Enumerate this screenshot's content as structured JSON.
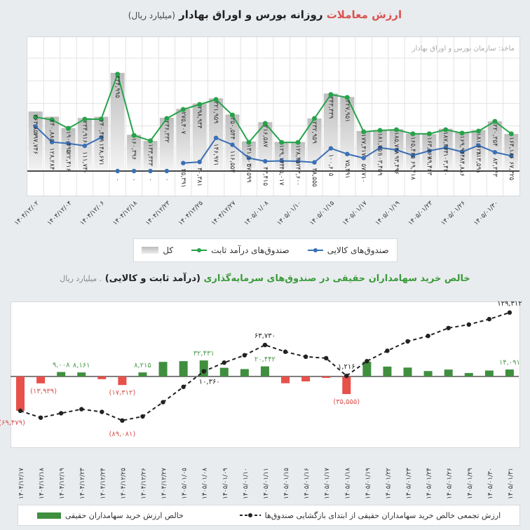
{
  "top_chart": {
    "title_highlight": "ارزش معاملات",
    "title_main": "روزانه بورس و اوراق بهادار",
    "title_unit": "(میلیارد ریال)",
    "source": "ماخذ: سازمان بورس و اوراق بهادار",
    "legend": {
      "commodity": "صندوق‌های کالایی",
      "fixed_income": "صندوق‌های درآمد ثابت",
      "total": "کل"
    },
    "colors": {
      "commodity": "#3a6fb5",
      "fixed_income": "#27a24a",
      "total": "#c8c8c8"
    },
    "date_labels": [
      "۱۴۰۴/۱۲/۰۲",
      "۱۴۰۴/۱۲/۰۴",
      "۱۴۰۴/۱۲/۰۶",
      "۱۴۰۴/۱۲/۱۸",
      "۱۴۰۴/۱۲/۲۳",
      "۱۴۰۴/۱۲/۲۵",
      "۱۴۰۴/۱۲/۲۷",
      "۱۴۰۵/۰۱/۰۸",
      "۱۴۰۵/۰۱/۱۰",
      "۱۴۰۵/۰۱/۱۵",
      "۱۴۰۵/۰۱/۱۷",
      "۱۴۰۵/۰۱/۱۹",
      "۱۴۰۵/۰۱/۲۳",
      "۱۴۰۵/۰۱/۲۶",
      "۱۴۰۵/۰۱/۳۰"
    ]
  },
  "bottom_chart": {
    "title_green": "خالص خرید سهامداران حقیقی در صندوق‌های سرمایه‌گذاری",
    "title_bold": "(درآمد ثابت و کالایی)",
    "title_unit": ". میلیارد ریال",
    "legend": {
      "cumulative": "ارزش تجمعی خالص خرید سهامداران حقیقی از ابتدای بازگشایی صندوق‌ها",
      "net": "خالص ارزش خرید سهامداران حقیقی"
    },
    "colors": {
      "positive": "#3f8f3f",
      "negative": "#e8504a",
      "line": "#222222"
    },
    "dates": [
      "۱۴۰۴/۱۲/۱۷",
      "۱۴۰۴/۱۲/۱۸",
      "۱۴۰۴/۱۲/۱۹",
      "۱۴۰۴/۱۲/۲۳",
      "۱۴۰۴/۱۲/۲۴",
      "۱۴۰۴/۱۲/۲۵",
      "۱۴۰۴/۱۲/۲۶",
      "۱۴۰۴/۱۲/۲۷",
      "۱۴۰۵/۰۱/۰۵",
      "۱۴۰۵/۰۱/۰۸",
      "۱۴۰۵/۰۱/۰۹",
      "۱۴۰۵/۰۱/۱۰",
      "۱۴۰۵/۰۱/۱۱",
      "۱۴۰۵/۰۱/۱۵",
      "۱۴۰۵/۰۱/۱۶",
      "۱۴۰۵/۰۱/۱۷",
      "۱۴۰۵/۰۱/۱۸",
      "۱۴۰۵/۰۱/۱۹",
      "۱۴۰۵/۰۱/۲۲",
      "۱۴۰۵/۰۱/۲۳",
      "۱۴۰۵/۰۱/۲۴",
      "۱۴۰۵/۰۱/۲۶",
      "۱۴۰۵/۰۱/۲۹",
      "۱۴۰۵/۰۱/۳۰",
      "۱۴۰۵/۰۱/۳۱"
    ]
  },
  "chart_data": [
    {
      "type": "bar+line",
      "ylim": [
        0,
        600000
      ],
      "grid": true,
      "legend_position": "bottom",
      "series": [
        {
          "name": "کل",
          "type": "bar",
          "values": [
            263856,
            240885,
            190495,
            234916,
            240439,
            434995,
            160396,
            133333,
            236332,
            275407,
            298934,
            321959,
            250544,
            131103,
            216587,
            129134,
            128452,
            232959,
            343339,
            327951,
            177417,
            181751,
            185798,
            165465,
            163767,
            187434,
            169944,
            181628,
            220354,
            164186
          ]
        },
        {
          "name": "صندوق‌های درآمد ثابت",
          "type": "line",
          "values": [
            239000,
            227000,
            189000,
            230000,
            230000,
            429000,
            158000,
            134000,
            233000,
            273000,
            295000,
            317000,
            248000,
            127000,
            211000,
            127000,
            127000,
            233000,
            339000,
            326000,
            174000,
            180000,
            183000,
            165000,
            165000,
            183000,
            168000,
            177000,
            220000,
            165000
          ]
        },
        {
          "name": "صندوق‌های کالایی",
          "type": "line",
          "values": [
            197746,
            128284,
            122416,
            111740,
            148671,
            0,
            0,
            0,
            0,
            35391,
            40381,
            146971,
            116553,
            57599,
            43415,
            45017,
            43600,
            38555,
            100605,
            75491,
            57710,
            103459,
            93496,
            69418,
            89463,
            103420,
            84886,
            113591,
            83343,
            67325
          ]
        }
      ]
    },
    {
      "type": "bar+line",
      "grid": false,
      "legend_position": "bottom",
      "net_values": [
        -69479,
        -13939,
        9008,
        8161,
        -5500,
        -17312,
        8215,
        29500,
        31000,
        32431,
        17600,
        15000,
        20442,
        -13700,
        -10000,
        -3000,
        -35555,
        30000,
        20000,
        18000,
        11000,
        14000,
        7000,
        12000,
        14091
      ],
      "net_labels_shown": [
        0,
        1,
        2,
        3,
        5,
        6,
        9,
        12,
        16,
        24
      ],
      "cumulative_values": [
        -69479,
        -83400,
        -74400,
        -66200,
        -71700,
        -89081,
        -80900,
        -52000,
        -21000,
        10360,
        28000,
        43000,
        63730,
        50000,
        40000,
        37000,
        1216,
        31000,
        52000,
        71000,
        82000,
        98000,
        105000,
        116000,
        129312
      ],
      "cumulative_labels_shown": [
        5,
        9,
        12,
        16,
        24
      ]
    }
  ]
}
